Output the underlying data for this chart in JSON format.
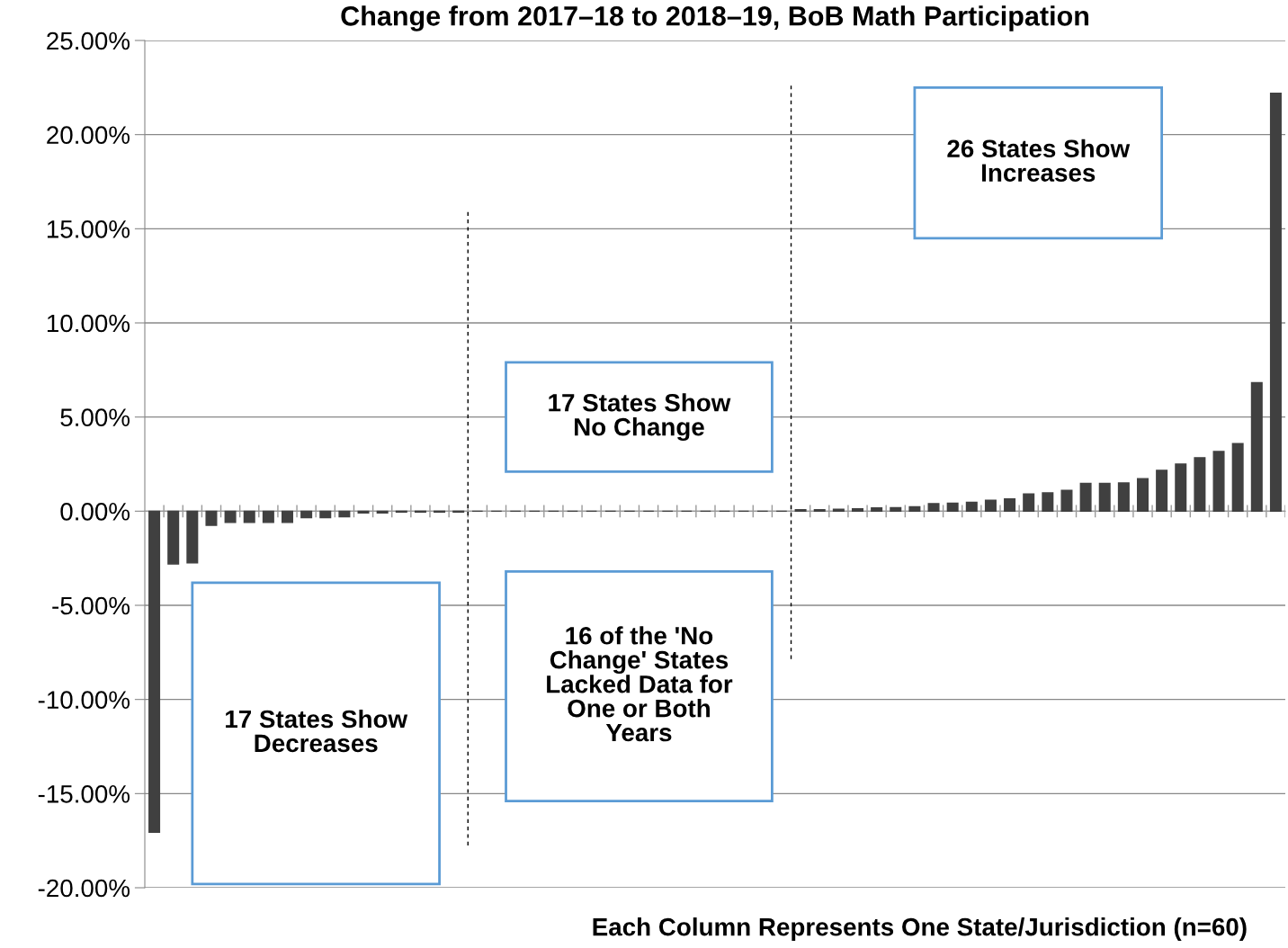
{
  "chart_data": {
    "type": "bar",
    "title": "Change from 2017–18 to 2018–19, BoB Math Participation",
    "xlabel": "Each Column Represents One State/Jurisdiction (n=60)",
    "categories": [
      null,
      null,
      null,
      null,
      null,
      null,
      null,
      null,
      null,
      null,
      null,
      null,
      null,
      null,
      null,
      null,
      null,
      null,
      null,
      null,
      null,
      null,
      null,
      null,
      null,
      null,
      null,
      null,
      null,
      null,
      null,
      null,
      null,
      null,
      null,
      null,
      null,
      null,
      null,
      null,
      null,
      null,
      null,
      null,
      null,
      null,
      null,
      null,
      null,
      null,
      null,
      null,
      null,
      null,
      null,
      null,
      null,
      null,
      null,
      null
    ],
    "values": [
      -17.05,
      -2.8,
      -2.75,
      -0.75,
      -0.6,
      -0.6,
      -0.6,
      -0.6,
      -0.35,
      -0.35,
      -0.3,
      -0.1,
      -0.1,
      -0.05,
      -0.05,
      -0.05,
      -0.05,
      0,
      0,
      0,
      0,
      0,
      0,
      0,
      0,
      0,
      0,
      0,
      0,
      0,
      0,
      0,
      0,
      0,
      0.08,
      0.08,
      0.1,
      0.13,
      0.17,
      0.18,
      0.23,
      0.4,
      0.43,
      0.47,
      0.58,
      0.65,
      0.92,
      0.97,
      1.1,
      1.47,
      1.47,
      1.5,
      1.73,
      2.17,
      2.5,
      2.84,
      3.17,
      3.59,
      6.82,
      22.2
    ],
    "color": "#404040",
    "ylim": [
      -20,
      25
    ],
    "yticks": [
      {
        "value": -20,
        "label": "-20.00%"
      },
      {
        "value": -15,
        "label": "-15.00%"
      },
      {
        "value": -10,
        "label": "-10.00%"
      },
      {
        "value": -5,
        "label": "-5.00%"
      },
      {
        "value": 0,
        "label": "0.00%"
      },
      {
        "value": 5,
        "label": "5.00%"
      },
      {
        "value": 10,
        "label": "10.00%"
      },
      {
        "value": 15,
        "label": "15.00%"
      },
      {
        "value": 20,
        "label": "20.00%"
      },
      {
        "value": 25,
        "label": "25.00%"
      }
    ],
    "grid": "y",
    "tick_labels": "y",
    "annotations": [
      "17 States Show\nDecreases",
      "17 States Show\nNo Change",
      "16 of the 'No\nChange' States\nLacked Data for\nOne or Both\nYears",
      "26 States Show\nIncreases"
    ]
  }
}
